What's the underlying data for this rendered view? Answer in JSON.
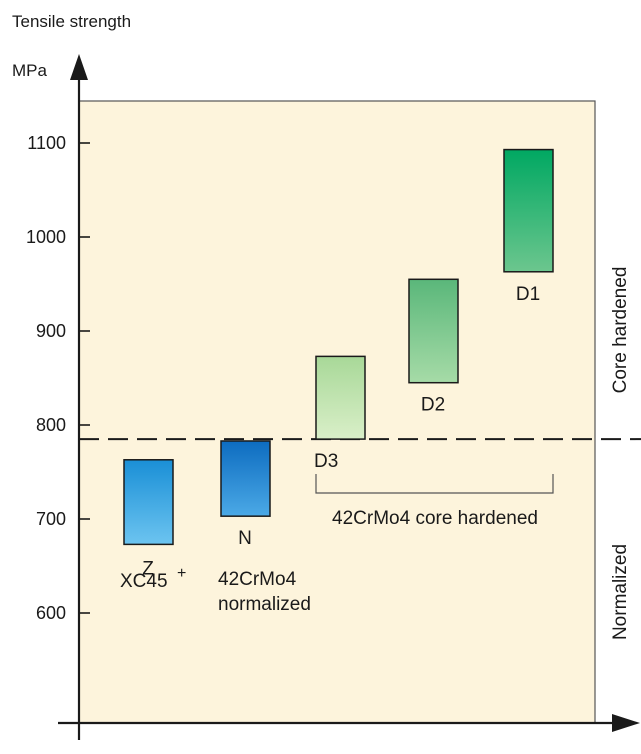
{
  "chart_data": {
    "type": "bar",
    "title": "",
    "ylabel": "Tensile strength",
    "yunit": "MPa",
    "yticks": [
      "600",
      "700",
      "800",
      "900",
      "1000",
      "1100"
    ],
    "ylim": [
      500,
      1150
    ],
    "threshold": 785,
    "bars": [
      {
        "name": "Z",
        "low": 673,
        "high": 763,
        "color_top": "#1a8fd6",
        "color_bottom": "#6cc4f0"
      },
      {
        "name": "N",
        "low": 703,
        "high": 783,
        "color_top": "#0d6cc0",
        "color_bottom": "#4ba9e6"
      },
      {
        "name": "D3",
        "low": 785,
        "high": 873,
        "color_top": "#a8d898",
        "color_bottom": "#d9efc8"
      },
      {
        "name": "D2",
        "low": 845,
        "high": 955,
        "color_top": "#5ab77a",
        "color_bottom": "#a6dba7"
      },
      {
        "name": "D1",
        "low": 963,
        "high": 1093,
        "color_top": "#00a862",
        "color_bottom": "#6cc68e"
      }
    ],
    "annotations": {
      "xc45": "XC45",
      "xc45_sup": "+",
      "n_line1": "42CrMo4",
      "n_line2": "normalized",
      "bracket_label": "42CrMo4 core hardened",
      "core_hardened": "Core hardened",
      "normalized": "Normalized"
    },
    "colors": {
      "plot_bg": "#fdf4dc",
      "frame": "#444444",
      "axis": "#1a1a1a",
      "dash": "#1a1a1a"
    }
  }
}
